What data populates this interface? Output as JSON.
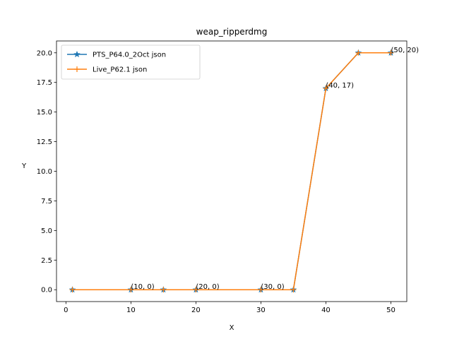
{
  "chart_data": {
    "type": "line",
    "title": "weap_ripperdmg",
    "xlabel": "X",
    "ylabel": "Y",
    "xlim": [
      -1.45,
      52.45
    ],
    "ylim": [
      -1.0,
      21.0
    ],
    "xticks": [
      0,
      10,
      20,
      30,
      40,
      50
    ],
    "yticks": [
      0.0,
      2.5,
      5.0,
      7.5,
      10.0,
      12.5,
      15.0,
      17.5,
      20.0
    ],
    "ytick_labels": [
      "0.0",
      "2.5",
      "5.0",
      "7.5",
      "10.0",
      "12.5",
      "15.0",
      "17.5",
      "20.0"
    ],
    "legend_position": "upper-left",
    "series": [
      {
        "name": "PTS_P64.0_2Oct json",
        "color": "#1f77b4",
        "marker": "star",
        "x": [
          1,
          10,
          15,
          20,
          30,
          35,
          40,
          45,
          50
        ],
        "y": [
          0,
          0,
          0,
          0,
          0,
          0,
          17,
          20,
          20
        ]
      },
      {
        "name": "Live_P62.1 json",
        "color": "#ff7f0e",
        "marker": "plus",
        "x": [
          1,
          10,
          15,
          20,
          30,
          35,
          40,
          45,
          50
        ],
        "y": [
          0,
          0,
          0,
          0,
          0,
          0,
          17,
          20,
          20
        ]
      }
    ],
    "annotations": [
      {
        "text": "(10, 0)",
        "x": 10,
        "y": 0
      },
      {
        "text": "(20, 0)",
        "x": 20,
        "y": 0
      },
      {
        "text": "(30, 0)",
        "x": 30,
        "y": 0
      },
      {
        "text": "(40, 17)",
        "x": 40,
        "y": 17
      },
      {
        "text": "(50, 20)",
        "x": 50,
        "y": 20
      }
    ]
  }
}
